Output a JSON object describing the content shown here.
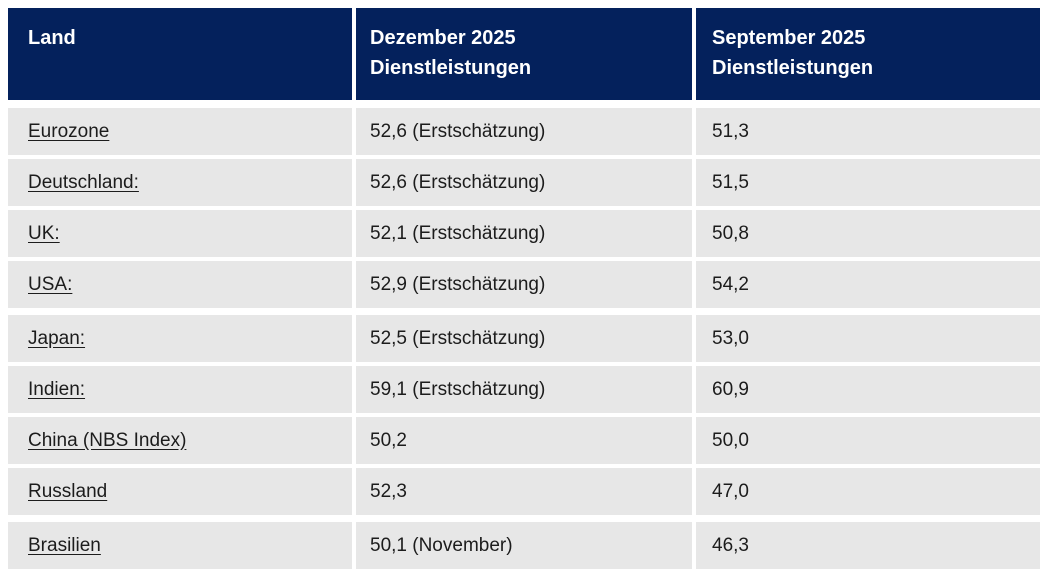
{
  "table": {
    "colors": {
      "header_bg": "#04215c",
      "header_text": "#ffffff",
      "row_bg": "#e7e7e7",
      "body_text": "#1c1c1c",
      "page_bg": "#ffffff"
    },
    "columns": [
      {
        "label": "Land"
      },
      {
        "label": "Dezember 2025\nDienstleistungen"
      },
      {
        "label": "September 2025\nDienstleistungen"
      }
    ],
    "rows": [
      {
        "land": "Eurozone",
        "dezember": "52,6 (Erstschätzung)",
        "september": "51,3"
      },
      {
        "land": "Deutschland:",
        "dezember": "52,6 (Erstschätzung)",
        "september": "51,5"
      },
      {
        "land": "UK:",
        "dezember": "52,1 (Erstschätzung)",
        "september": "50,8"
      },
      {
        "land": "USA:",
        "dezember": "52,9 (Erstschätzung)",
        "september": "54,2"
      },
      {
        "land": "Japan:",
        "dezember": "52,5 (Erstschätzung)",
        "september": "53,0"
      },
      {
        "land": "Indien:",
        "dezember": "59,1 (Erstschätzung)",
        "september": "60,9"
      },
      {
        "land": "China (NBS Index)",
        "dezember": "50,2",
        "september": "50,0"
      },
      {
        "land": "Russland",
        "dezember": "52,3",
        "september": "47,0"
      },
      {
        "land": "Brasilien",
        "dezember": "50,1 (November)",
        "september": "46,3"
      }
    ]
  }
}
